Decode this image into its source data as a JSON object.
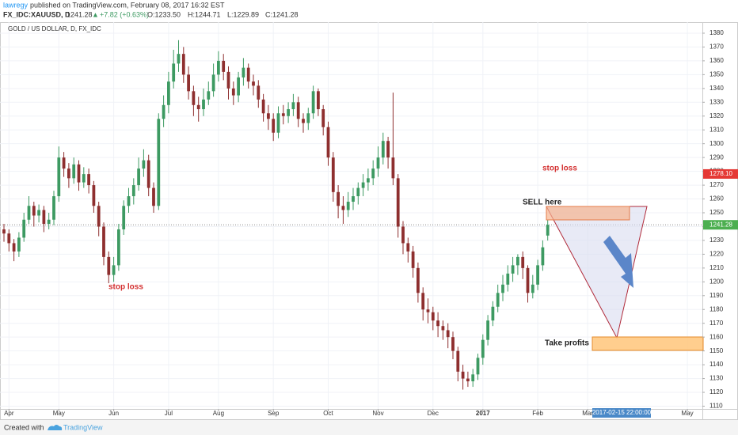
{
  "header": {
    "author": "lawregy",
    "published": "published on TradingView.com, February 08, 2017 16:32 EST",
    "symbol": "FX_IDC:XAUUSD, D",
    "last": "1241.28",
    "change": "+7.82 (+0.63%)",
    "open": "O:1233.50",
    "high": "H:1244.71",
    "low": "L:1229.89",
    "close": "C:1241.28"
  },
  "footer": {
    "created": "Created with",
    "brand": "TradingView"
  },
  "chart_data": {
    "type": "candlestick",
    "title": "GOLD / US DOLLAR, D, FX_IDC",
    "up_color": "#3d9a62",
    "down_color": "#8e2f2f",
    "grid": true,
    "xlim": [
      0,
      140
    ],
    "ylim": [
      1108,
      1388
    ],
    "xticks": [
      {
        "value": 1,
        "label": "Apr"
      },
      {
        "value": 11,
        "label": "May"
      },
      {
        "value": 22,
        "label": "Jun"
      },
      {
        "value": 33,
        "label": "Jul"
      },
      {
        "value": 43,
        "label": "Aug"
      },
      {
        "value": 54,
        "label": "Sep"
      },
      {
        "value": 65,
        "label": "Oct"
      },
      {
        "value": 75,
        "label": "Nov"
      },
      {
        "value": 86,
        "label": "Dec"
      },
      {
        "value": 96,
        "label": "2017"
      },
      {
        "value": 107,
        "label": "Feb"
      },
      {
        "value": 117,
        "label": "Mar"
      },
      {
        "value": 137,
        "label": "May"
      }
    ],
    "yticks": [
      1110,
      1120,
      1130,
      1140,
      1150,
      1160,
      1170,
      1180,
      1190,
      1200,
      1210,
      1220,
      1230,
      1240,
      1250,
      1260,
      1270,
      1280,
      1290,
      1300,
      1310,
      1320,
      1330,
      1340,
      1350,
      1360,
      1370,
      1380
    ],
    "price_lines": [
      {
        "value": 1278.1,
        "label": "1278.10",
        "color": "#e53935"
      },
      {
        "value": 1241.28,
        "color": "#4caf50"
      }
    ],
    "crosshair_label": "2017-02-15 22:00:00",
    "annotations": {
      "stop_loss_1": "stop loss",
      "stop_loss_2": "stop loss",
      "sell": "SELL here",
      "take_profit": "Take profits"
    },
    "x": [
      0,
      1,
      2,
      3,
      4,
      5,
      6,
      7,
      8,
      9,
      10,
      11,
      12,
      13,
      14,
      15,
      16,
      17,
      18,
      19,
      20,
      21,
      22,
      23,
      24,
      25,
      26,
      27,
      28,
      29,
      30,
      31,
      32,
      33,
      34,
      35,
      36,
      37,
      38,
      39,
      40,
      41,
      42,
      43,
      44,
      45,
      46,
      47,
      48,
      49,
      50,
      51,
      52,
      53,
      54,
      55,
      56,
      57,
      58,
      59,
      60,
      61,
      62,
      63,
      64,
      65,
      66,
      67,
      68,
      69,
      70,
      71,
      72,
      73,
      74,
      75,
      76,
      77,
      78,
      79,
      80,
      81,
      82,
      83,
      84,
      85,
      86,
      87,
      88,
      89,
      90,
      91,
      92,
      93,
      94,
      95,
      96,
      97,
      98,
      99,
      100,
      101,
      102,
      103,
      104,
      105,
      106,
      107,
      108,
      109
    ],
    "ohlc": [
      [
        1238,
        1242,
        1229,
        1235
      ],
      [
        1235,
        1238,
        1222,
        1228
      ],
      [
        1228,
        1231,
        1215,
        1222
      ],
      [
        1222,
        1236,
        1218,
        1232
      ],
      [
        1232,
        1250,
        1229,
        1245
      ],
      [
        1245,
        1262,
        1242,
        1255
      ],
      [
        1255,
        1258,
        1240,
        1248
      ],
      [
        1248,
        1256,
        1243,
        1252
      ],
      [
        1252,
        1255,
        1236,
        1242
      ],
      [
        1242,
        1250,
        1238,
        1245
      ],
      [
        1245,
        1266,
        1241,
        1262
      ],
      [
        1262,
        1298,
        1258,
        1290
      ],
      [
        1290,
        1294,
        1276,
        1282
      ],
      [
        1282,
        1286,
        1268,
        1275
      ],
      [
        1275,
        1290,
        1271,
        1285
      ],
      [
        1285,
        1288,
        1266,
        1272
      ],
      [
        1272,
        1283,
        1268,
        1278
      ],
      [
        1278,
        1282,
        1264,
        1270
      ],
      [
        1270,
        1273,
        1250,
        1255
      ],
      [
        1255,
        1258,
        1233,
        1240
      ],
      [
        1240,
        1243,
        1212,
        1218
      ],
      [
        1218,
        1222,
        1199,
        1205
      ],
      [
        1205,
        1218,
        1200,
        1212
      ],
      [
        1212,
        1242,
        1208,
        1238
      ],
      [
        1238,
        1259,
        1234,
        1255
      ],
      [
        1255,
        1268,
        1250,
        1262
      ],
      [
        1262,
        1275,
        1256,
        1270
      ],
      [
        1270,
        1290,
        1266,
        1282
      ],
      [
        1282,
        1296,
        1276,
        1288
      ],
      [
        1288,
        1292,
        1262,
        1268
      ],
      [
        1268,
        1272,
        1250,
        1255
      ],
      [
        1255,
        1322,
        1252,
        1318
      ],
      [
        1318,
        1335,
        1312,
        1328
      ],
      [
        1328,
        1352,
        1322,
        1345
      ],
      [
        1345,
        1368,
        1340,
        1358
      ],
      [
        1358,
        1375,
        1352,
        1365
      ],
      [
        1365,
        1370,
        1344,
        1350
      ],
      [
        1350,
        1356,
        1332,
        1338
      ],
      [
        1338,
        1342,
        1320,
        1328
      ],
      [
        1328,
        1334,
        1316,
        1325
      ],
      [
        1325,
        1340,
        1320,
        1332
      ],
      [
        1332,
        1345,
        1328,
        1338
      ],
      [
        1338,
        1358,
        1334,
        1350
      ],
      [
        1350,
        1367,
        1345,
        1360
      ],
      [
        1360,
        1365,
        1346,
        1352
      ],
      [
        1352,
        1356,
        1332,
        1340
      ],
      [
        1340,
        1345,
        1328,
        1335
      ],
      [
        1335,
        1352,
        1330,
        1348
      ],
      [
        1348,
        1362,
        1342,
        1355
      ],
      [
        1355,
        1358,
        1340,
        1345
      ],
      [
        1345,
        1350,
        1335,
        1342
      ],
      [
        1342,
        1346,
        1326,
        1332
      ],
      [
        1332,
        1336,
        1316,
        1322
      ],
      [
        1322,
        1328,
        1310,
        1318
      ],
      [
        1318,
        1322,
        1302,
        1308
      ],
      [
        1308,
        1327,
        1304,
        1322
      ],
      [
        1322,
        1328,
        1314,
        1320
      ],
      [
        1320,
        1330,
        1315,
        1325
      ],
      [
        1325,
        1336,
        1320,
        1330
      ],
      [
        1330,
        1334,
        1312,
        1318
      ],
      [
        1318,
        1322,
        1308,
        1315
      ],
      [
        1315,
        1326,
        1310,
        1322
      ],
      [
        1322,
        1342,
        1318,
        1338
      ],
      [
        1338,
        1340,
        1320,
        1325
      ],
      [
        1325,
        1328,
        1306,
        1312
      ],
      [
        1312,
        1316,
        1284,
        1290
      ],
      [
        1290,
        1294,
        1258,
        1265
      ],
      [
        1265,
        1270,
        1246,
        1255
      ],
      [
        1255,
        1262,
        1242,
        1252
      ],
      [
        1252,
        1265,
        1247,
        1258
      ],
      [
        1258,
        1268,
        1252,
        1262
      ],
      [
        1262,
        1272,
        1256,
        1268
      ],
      [
        1268,
        1278,
        1262,
        1272
      ],
      [
        1272,
        1282,
        1266,
        1275
      ],
      [
        1275,
        1288,
        1270,
        1282
      ],
      [
        1282,
        1298,
        1276,
        1290
      ],
      [
        1290,
        1308,
        1285,
        1302
      ],
      [
        1302,
        1305,
        1282,
        1290
      ],
      [
        1290,
        1337,
        1270,
        1275
      ],
      [
        1275,
        1278,
        1232,
        1240
      ],
      [
        1240,
        1244,
        1220,
        1228
      ],
      [
        1228,
        1232,
        1214,
        1222
      ],
      [
        1222,
        1226,
        1203,
        1210
      ],
      [
        1210,
        1214,
        1185,
        1192
      ],
      [
        1192,
        1196,
        1172,
        1180
      ],
      [
        1180,
        1188,
        1170,
        1178
      ],
      [
        1178,
        1182,
        1165,
        1172
      ],
      [
        1172,
        1178,
        1160,
        1168
      ],
      [
        1168,
        1172,
        1158,
        1165
      ],
      [
        1165,
        1170,
        1152,
        1160
      ],
      [
        1160,
        1164,
        1144,
        1150
      ],
      [
        1150,
        1153,
        1128,
        1135
      ],
      [
        1135,
        1140,
        1122,
        1130
      ],
      [
        1130,
        1135,
        1124,
        1128
      ],
      [
        1128,
        1137,
        1124,
        1133
      ],
      [
        1133,
        1148,
        1129,
        1145
      ],
      [
        1145,
        1162,
        1140,
        1158
      ],
      [
        1158,
        1176,
        1154,
        1172
      ],
      [
        1172,
        1186,
        1168,
        1182
      ],
      [
        1182,
        1198,
        1178,
        1192
      ],
      [
        1192,
        1205,
        1186,
        1198
      ],
      [
        1198,
        1212,
        1193,
        1206
      ],
      [
        1206,
        1218,
        1200,
        1212
      ],
      [
        1212,
        1220,
        1205,
        1218
      ],
      [
        1218,
        1222,
        1202,
        1210
      ],
      [
        1210,
        1212,
        1185,
        1192
      ],
      [
        1192,
        1205,
        1188,
        1198
      ],
      [
        1198,
        1216,
        1194,
        1212
      ],
      [
        1212,
        1230,
        1208,
        1225
      ],
      [
        1233.5,
        1244.71,
        1229.89,
        1241.28
      ]
    ]
  }
}
